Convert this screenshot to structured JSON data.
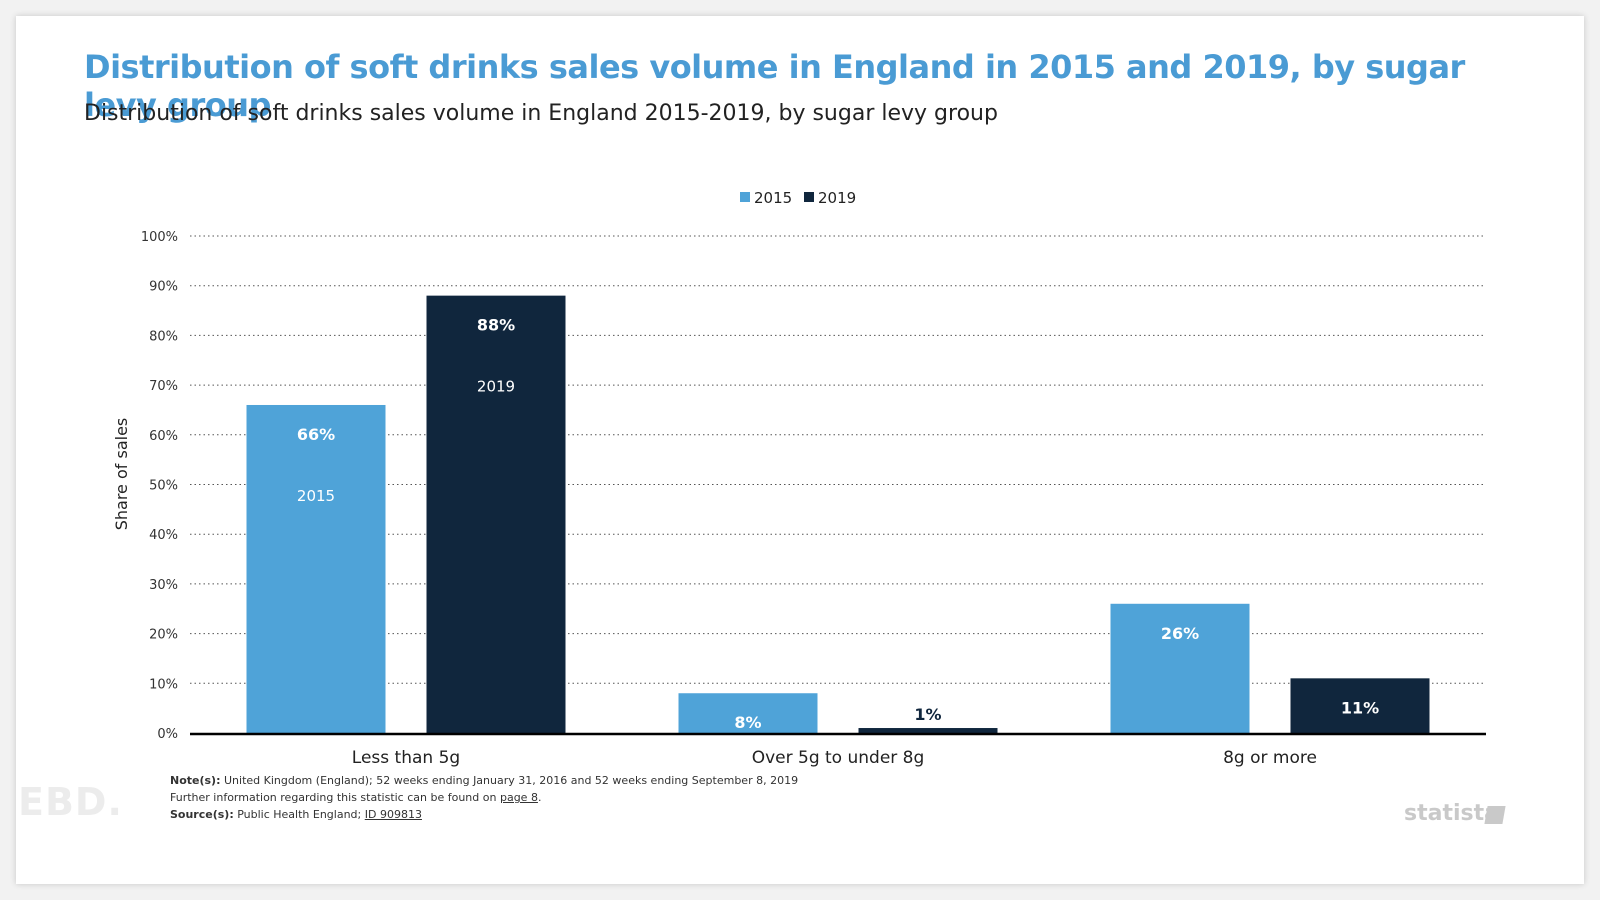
{
  "header": {
    "title": "Distribution of soft drinks sales volume in England in 2015 and 2019, by sugar levy group",
    "subtitle": "Distribution of soft drinks sales volume in England 2015-2019, by sugar levy group"
  },
  "chart_data": {
    "type": "bar",
    "categories": [
      "Less than 5g",
      "Over 5g to under 8g",
      "8g or more"
    ],
    "series": [
      {
        "name": "2015",
        "values": [
          66,
          8,
          26
        ],
        "color": "#4fa3d8"
      },
      {
        "name": "2019",
        "values": [
          88,
          1,
          11
        ],
        "color": "#10263d"
      }
    ],
    "value_labels": [
      [
        "66%",
        "8%",
        "26%"
      ],
      [
        "88%",
        "1%",
        "11%"
      ]
    ],
    "ylabel": "Share of sales",
    "ylim": [
      0,
      100
    ],
    "yticks": [
      0,
      10,
      20,
      30,
      40,
      50,
      60,
      70,
      80,
      90,
      100
    ],
    "ytick_labels": [
      "0%",
      "10%",
      "20%",
      "30%",
      "40%",
      "50%",
      "60%",
      "70%",
      "80%",
      "90%",
      "100%"
    ],
    "grid": true,
    "legend_position": "top-center"
  },
  "notes": {
    "note_label": "Note(s):",
    "note_text": "United Kingdom (England); 52 weeks ending January 31, 2016 and 52 weeks ending September 8, 2019",
    "further_text": "Further information regarding this statistic can be found on ",
    "further_link": "page 8",
    "further_end": ".",
    "source_label": "Source(s):",
    "source_text": "Public Health England; ",
    "source_link": "ID 909813"
  },
  "branding": {
    "left_logo": "EBD.",
    "right_logo": "statista"
  }
}
